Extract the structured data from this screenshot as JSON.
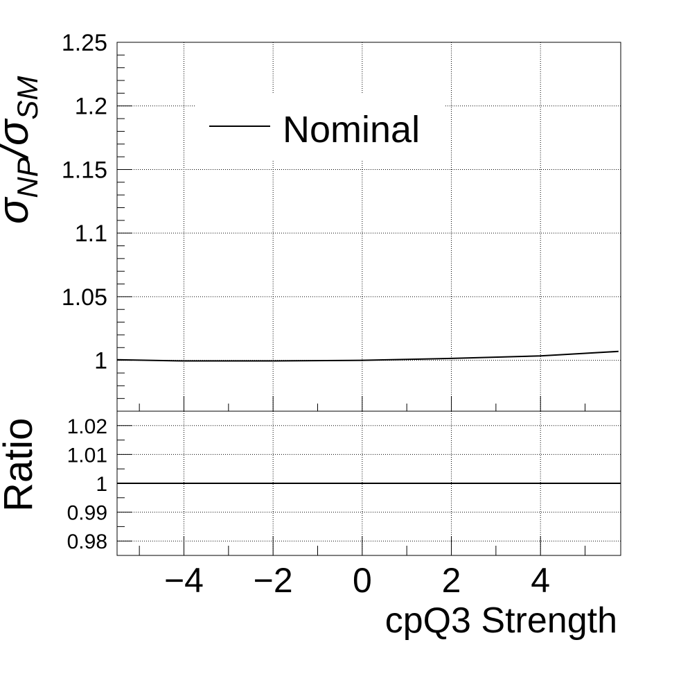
{
  "chart_data": [
    {
      "type": "line",
      "panel": "main",
      "ylabel_main": "σ",
      "ylabel_sub1": "NP",
      "ylabel_mid": "/σ",
      "ylabel_sub2": "SM",
      "xlim": [
        -5.5,
        5.8
      ],
      "ylim": [
        0.96,
        1.25
      ],
      "yticks": [
        {
          "v": 1,
          "label": "1"
        },
        {
          "v": 1.05,
          "label": "1.05"
        },
        {
          "v": 1.1,
          "label": "1.1"
        },
        {
          "v": 1.15,
          "label": "1.15"
        },
        {
          "v": 1.2,
          "label": "1.2"
        },
        {
          "v": 1.25,
          "label": "1.25"
        }
      ],
      "grid": true,
      "legend_position": "top-left",
      "series": [
        {
          "name": "Nominal",
          "color": "#000000",
          "x": [
            -5.5,
            -4.0,
            -2.0,
            0.0,
            2.0,
            4.0,
            5.75
          ],
          "y": [
            1.0005,
            0.9995,
            0.9995,
            1.0,
            1.0015,
            1.0035,
            1.007
          ]
        }
      ]
    },
    {
      "type": "line",
      "panel": "ratio",
      "ylabel": "Ratio",
      "xlabel": "cpQ3 Strength",
      "xlim": [
        -5.5,
        5.8
      ],
      "ylim": [
        0.975,
        1.025
      ],
      "xticks": [
        {
          "v": -4,
          "label": "−4"
        },
        {
          "v": -2,
          "label": "−2"
        },
        {
          "v": 0,
          "label": "0"
        },
        {
          "v": 2,
          "label": "2"
        },
        {
          "v": 4,
          "label": "4"
        }
      ],
      "yticks": [
        {
          "v": 0.98,
          "label": "0.98"
        },
        {
          "v": 0.99,
          "label": "0.99"
        },
        {
          "v": 1,
          "label": "1"
        },
        {
          "v": 1.01,
          "label": "1.01"
        },
        {
          "v": 1.02,
          "label": "1.02"
        }
      ],
      "grid": true,
      "series": [
        {
          "color": "#000000",
          "x": [
            -5.5,
            5.8
          ],
          "y": [
            1.0,
            1.0
          ]
        }
      ]
    }
  ]
}
